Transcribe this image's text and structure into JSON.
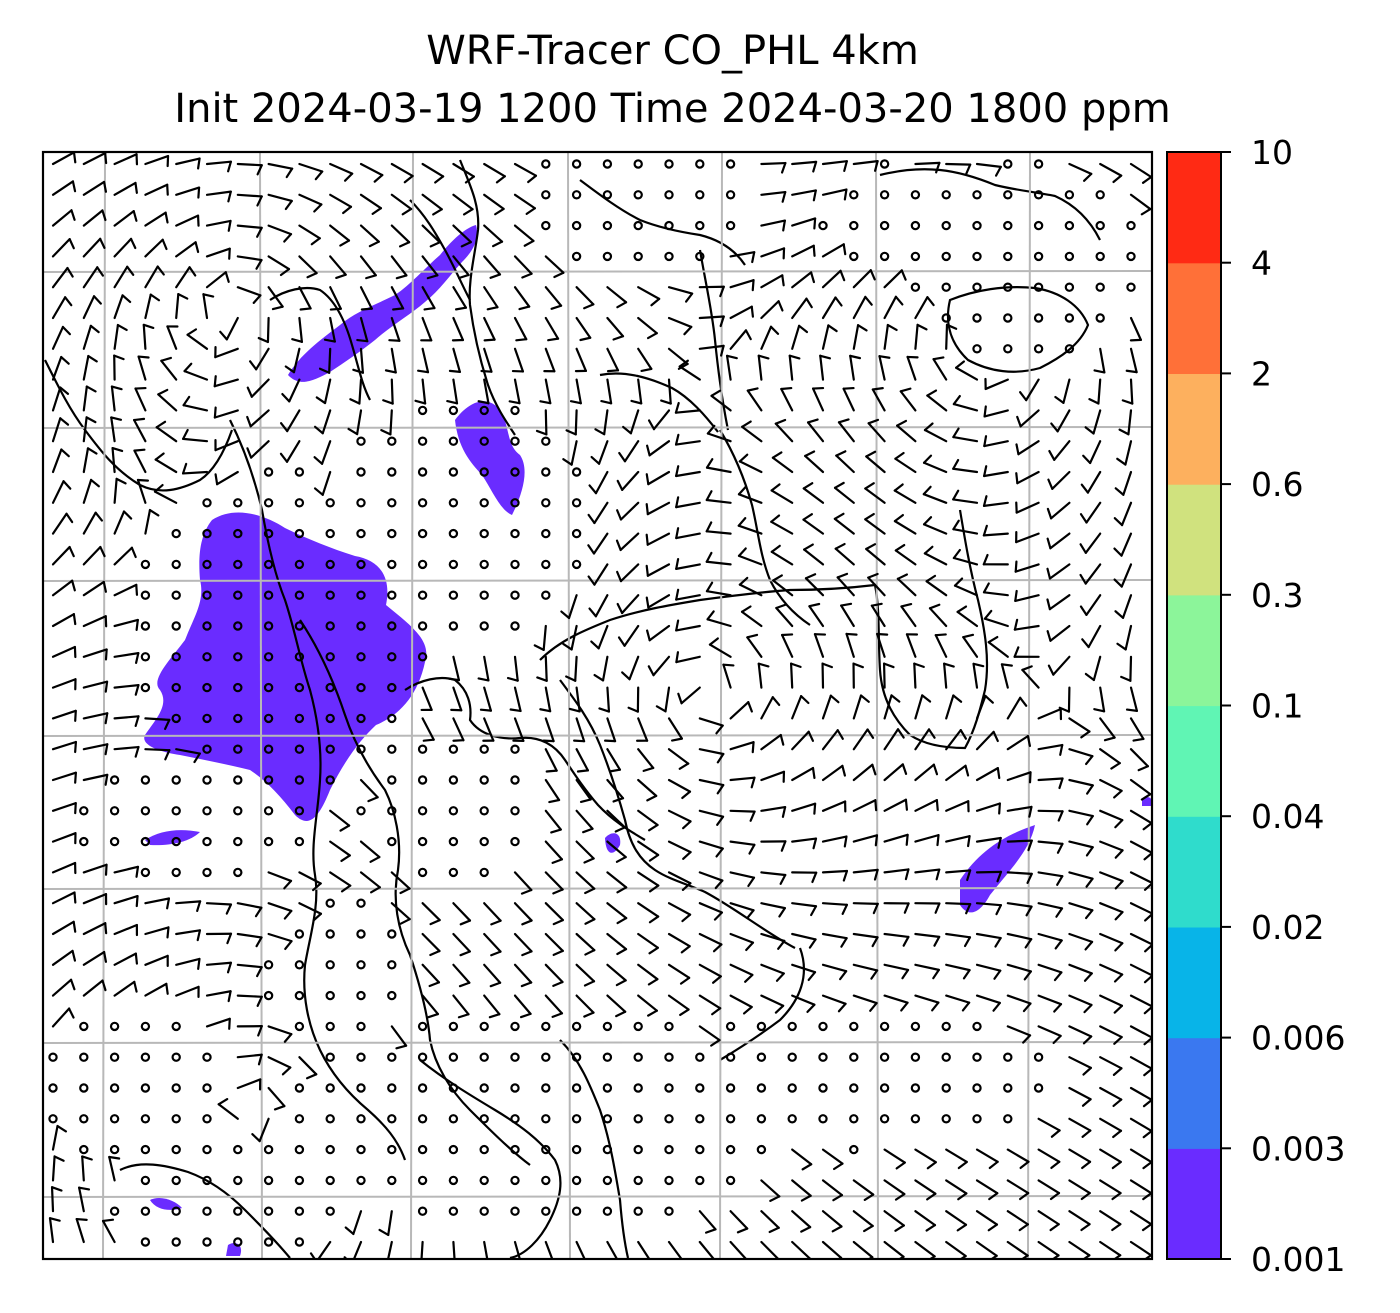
{
  "title": {
    "line1": "WRF-Tracer CO_PHL 4km",
    "line2": "Init 2024-03-19 1200 Time 2024-03-20 1800 ppm"
  },
  "colorbar": {
    "levels": [
      "0.001",
      "0.003",
      "0.006",
      "0.02",
      "0.04",
      "0.1",
      "0.3",
      "0.6",
      "2",
      "4",
      "10"
    ],
    "colors": [
      "#6a2cff",
      "#3a78f0",
      "#08b4e8",
      "#2fdccc",
      "#60f5b4",
      "#8cf59a",
      "#d0e27e",
      "#fdb05e",
      "#ff7038",
      "#ff2a14"
    ]
  },
  "map": {
    "tracer_color": "#6a2cff",
    "gridline_color": "#b8b8b8",
    "calm_marker": "circle",
    "barb_marker": "wind-barb"
  }
}
